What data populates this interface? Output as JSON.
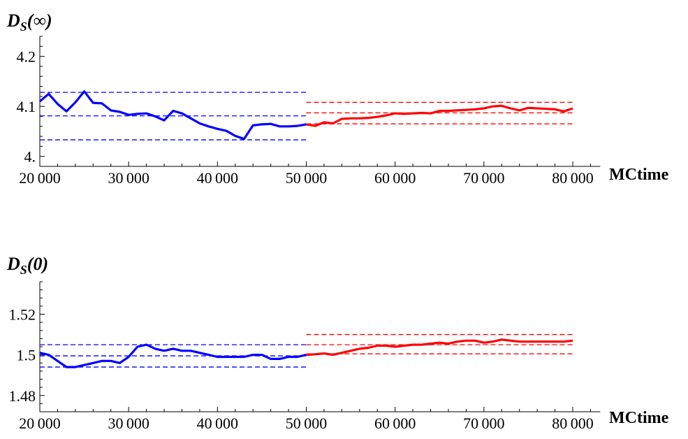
{
  "chart_data": [
    {
      "type": "line",
      "title_main": "D",
      "title_sub": "S",
      "title_arg": "(∞)",
      "xlabel": "MCtime",
      "xlim": [
        20000,
        82000
      ],
      "ylim": [
        3.98,
        4.24
      ],
      "x_ticks": [
        20000,
        30000,
        40000,
        50000,
        60000,
        70000,
        80000
      ],
      "x_tick_labels": [
        "20000",
        "30000",
        "40000",
        "50000",
        "60000",
        "70000",
        "80000"
      ],
      "y_ticks": [
        4.0,
        4.1,
        4.2
      ],
      "y_tick_labels": [
        "4.",
        "4.1",
        "4.2"
      ],
      "series": [
        {
          "color": "#0000ff",
          "x": [
            20000,
            21000,
            22000,
            23000,
            24000,
            25000,
            26000,
            27000,
            28000,
            29000,
            30000,
            31000,
            32000,
            33000,
            34000,
            35000,
            36000,
            37000,
            38000,
            39000,
            40000,
            41000,
            42000,
            43000,
            44000,
            45000,
            46000,
            47000,
            48000,
            49000,
            50000
          ],
          "y": [
            4.11,
            4.125,
            4.105,
            4.09,
            4.108,
            4.13,
            4.107,
            4.106,
            4.092,
            4.089,
            4.083,
            4.085,
            4.086,
            4.08,
            4.072,
            4.091,
            4.086,
            4.076,
            4.066,
            4.06,
            4.055,
            4.051,
            4.041,
            4.035,
            4.062,
            4.064,
            4.065,
            4.06,
            4.06,
            4.061,
            4.064
          ]
        },
        {
          "color": "#ff0000",
          "x": [
            50000,
            51000,
            52000,
            53000,
            54000,
            55000,
            56000,
            57000,
            58000,
            59000,
            60000,
            61000,
            62000,
            63000,
            64000,
            65000,
            66000,
            67000,
            68000,
            69000,
            70000,
            71000,
            72000,
            73000,
            74000,
            75000,
            76000,
            77000,
            78000,
            79000,
            80000
          ],
          "y": [
            4.064,
            4.061,
            4.068,
            4.066,
            4.075,
            4.076,
            4.076,
            4.077,
            4.079,
            4.082,
            4.086,
            4.085,
            4.086,
            4.087,
            4.086,
            4.091,
            4.091,
            4.092,
            4.093,
            4.094,
            4.096,
            4.1,
            4.101,
            4.096,
            4.092,
            4.097,
            4.096,
            4.095,
            4.094,
            4.09,
            4.096
          ]
        }
      ],
      "reference_lines": [
        {
          "color": "#0000ff",
          "x_range": [
            20000,
            50000
          ],
          "y": [
            4.128,
            4.081,
            4.033
          ]
        },
        {
          "color": "#ff0000",
          "x_range": [
            50000,
            80000
          ],
          "y": [
            4.108,
            4.087,
            4.065
          ]
        }
      ]
    },
    {
      "type": "line",
      "title_main": "D",
      "title_sub": "S",
      "title_arg": "(0)",
      "xlabel": "MCtime",
      "xlim": [
        20000,
        82000
      ],
      "ylim": [
        1.472,
        1.536
      ],
      "x_ticks": [
        20000,
        30000,
        40000,
        50000,
        60000,
        70000,
        80000
      ],
      "x_tick_labels": [
        "20000",
        "30000",
        "40000",
        "50000",
        "60000",
        "70000",
        "80000"
      ],
      "y_ticks": [
        1.48,
        1.5,
        1.52
      ],
      "y_tick_labels": [
        "1.48",
        "1.5",
        "1.52"
      ],
      "series": [
        {
          "color": "#0000ff",
          "x": [
            20000,
            21000,
            22000,
            23000,
            24000,
            25000,
            26000,
            27000,
            28000,
            29000,
            30000,
            31000,
            32000,
            33000,
            34000,
            35000,
            36000,
            37000,
            38000,
            39000,
            40000,
            41000,
            42000,
            43000,
            44000,
            45000,
            46000,
            47000,
            48000,
            49000,
            50000
          ],
          "y": [
            1.501,
            1.5,
            1.497,
            1.494,
            1.494,
            1.495,
            1.496,
            1.497,
            1.497,
            1.496,
            1.499,
            1.504,
            1.505,
            1.503,
            1.502,
            1.503,
            1.502,
            1.502,
            1.501,
            1.5,
            1.499,
            1.499,
            1.499,
            1.499,
            1.5,
            1.5,
            1.498,
            1.498,
            1.499,
            1.499,
            1.5
          ]
        },
        {
          "color": "#ff0000",
          "x": [
            50000,
            51000,
            52000,
            53000,
            54000,
            55000,
            56000,
            57000,
            58000,
            59000,
            60000,
            61000,
            62000,
            63000,
            64000,
            65000,
            66000,
            67000,
            68000,
            69000,
            70000,
            71000,
            72000,
            73000,
            74000,
            75000,
            76000,
            77000,
            78000,
            79000,
            80000
          ],
          "y": [
            1.5,
            1.5003,
            1.5007,
            1.5,
            1.501,
            1.502,
            1.503,
            1.5035,
            1.5045,
            1.5045,
            1.504,
            1.5045,
            1.505,
            1.505,
            1.5055,
            1.506,
            1.5055,
            1.5065,
            1.507,
            1.507,
            1.506,
            1.5065,
            1.5075,
            1.507,
            1.5065,
            1.5065,
            1.5065,
            1.5065,
            1.5065,
            1.5065,
            1.507
          ]
        }
      ],
      "reference_lines": [
        {
          "color": "#0000ff",
          "x_range": [
            20000,
            50000
          ],
          "y": [
            1.505,
            1.4995,
            1.494
          ]
        },
        {
          "color": "#ff0000",
          "x_range": [
            50000,
            80000
          ],
          "y": [
            1.51,
            1.505,
            1.5005
          ]
        }
      ]
    }
  ]
}
